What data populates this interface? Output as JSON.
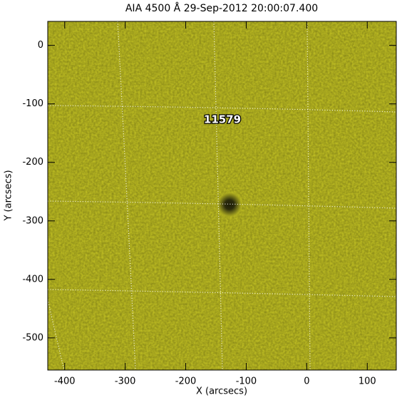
{
  "chart_data": {
    "type": "image",
    "title": "AIA 4500 Å 29-Sep-2012 20:00:07.400",
    "x_label": "X (arcsecs)",
    "y_label": "Y (arcsecs)",
    "annotation": "11579",
    "color": "#c9c824",
    "xlim": [
      -428,
      148
    ],
    "ylim": [
      -555,
      41
    ],
    "xticks": [
      -400,
      -300,
      -200,
      -100,
      0,
      100
    ],
    "yticks": [
      0,
      -100,
      -200,
      -300,
      -400,
      -500
    ]
  }
}
